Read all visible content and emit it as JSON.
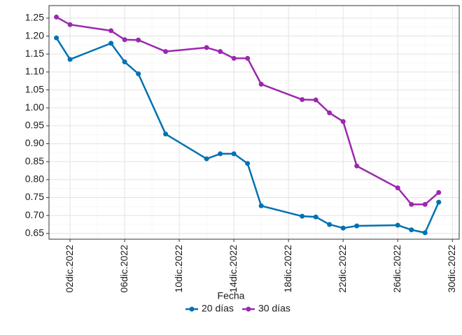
{
  "chart_data": {
    "type": "line",
    "x": [
      "2022-12-01",
      "2022-12-02",
      "2022-12-05",
      "2022-12-06",
      "2022-12-07",
      "2022-12-09",
      "2022-12-12",
      "2022-12-13",
      "2022-12-14",
      "2022-12-15",
      "2022-12-16",
      "2022-12-19",
      "2022-12-20",
      "2022-12-21",
      "2022-12-22",
      "2022-12-23",
      "2022-12-26",
      "2022-12-27",
      "2022-12-28",
      "2022-12-29"
    ],
    "series": [
      {
        "name": "20 días",
        "color": "#0072b2",
        "values": [
          1.195,
          1.135,
          1.18,
          1.128,
          1.095,
          0.927,
          0.858,
          0.872,
          0.872,
          0.845,
          0.727,
          0.698,
          0.696,
          0.675,
          0.665,
          0.671,
          0.673,
          0.66,
          0.652,
          0.737
        ]
      },
      {
        "name": "30 días",
        "color": "#9c27b0",
        "values": [
          1.253,
          1.232,
          1.215,
          1.19,
          1.189,
          1.157,
          1.168,
          1.157,
          1.138,
          1.138,
          1.066,
          1.023,
          1.022,
          0.986,
          0.962,
          0.838,
          0.777,
          0.731,
          0.731,
          0.764
        ]
      }
    ],
    "xlim": [
      "2022-11-30T11:00Z",
      "2022-12-30T12:00Z"
    ],
    "xticks": [
      {
        "value": "2022-12-02",
        "label": "02dic.2022"
      },
      {
        "value": "2022-12-06",
        "label": "06dic.2022"
      },
      {
        "value": "2022-12-10",
        "label": "10dic.2022"
      },
      {
        "value": "2022-12-14",
        "label": "14dic.2022"
      },
      {
        "value": "2022-12-18",
        "label": "18dic.2022"
      },
      {
        "value": "2022-12-22",
        "label": "22dic.2022"
      },
      {
        "value": "2022-12-26",
        "label": "26dic.2022"
      },
      {
        "value": "2022-12-30",
        "label": "30dic.2022"
      }
    ],
    "ylim": [
      0.634,
      1.285
    ],
    "yticks": [
      {
        "value": 0.65,
        "label": "0.65"
      },
      {
        "value": 0.7,
        "label": "0.70"
      },
      0.75,
      {
        "value": 0.8,
        "label": "0.80"
      },
      0.85,
      {
        "value": 0.9,
        "label": "0.90"
      },
      0.95,
      {
        "value": 1,
        "label": "1.00"
      },
      1.05,
      {
        "value": 1.1,
        "label": "1.10"
      },
      1.15,
      {
        "value": 1.2,
        "label": "1.20"
      },
      1.25
    ],
    "legend_title": "Fecha",
    "legend_position": "bottom",
    "grid": true
  }
}
